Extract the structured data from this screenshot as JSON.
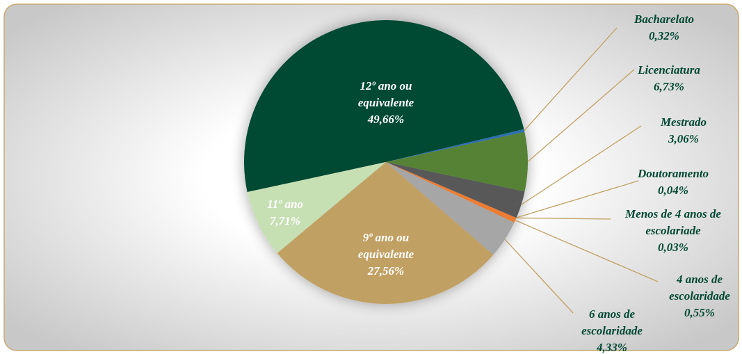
{
  "chart_data": {
    "type": "pie",
    "categories": [
      "12º ano ou equivalente",
      "Bacharelato",
      "Licenciatura",
      "Mestrado",
      "Doutoramento",
      "Menos de 4 anos de escolariade",
      "4 anos de escolaridade",
      "6 anos de escolaridade",
      "9º ano ou equivalente",
      "11º ano"
    ],
    "values": [
      49.66,
      0.32,
      6.73,
      3.06,
      0.04,
      0.03,
      0.55,
      4.33,
      27.56,
      7.71
    ],
    "value_labels": [
      "49,66%",
      "0,32%",
      "6,73%",
      "3,06%",
      "0,04%",
      "0,03%",
      "0,55%",
      "4,33%",
      "27,56%",
      "7,71%"
    ],
    "colors": [
      "#004833",
      "#2f6fb0",
      "#548235",
      "#595959",
      "#203864",
      "#c55a11",
      "#ed7d31",
      "#a6a6a6",
      "#c1a063",
      "#c6e0b4"
    ]
  }
}
